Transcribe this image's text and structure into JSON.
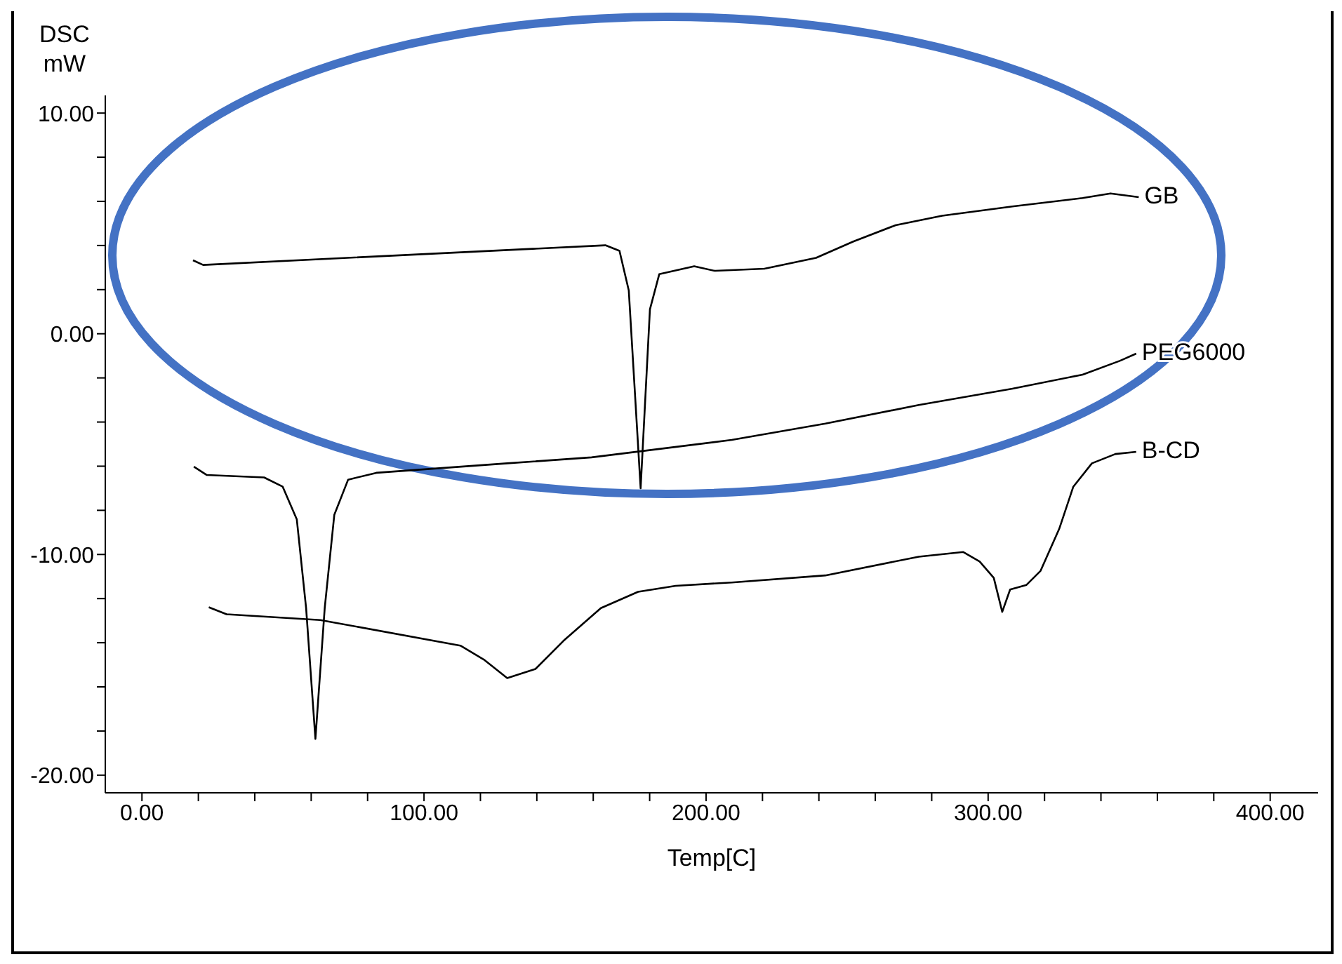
{
  "chart_data": {
    "type": "line",
    "ylabel": "DSC\nmW",
    "xlabel": "Temp[C]",
    "xlim": [
      -13,
      417
    ],
    "ylim": [
      -20.8,
      10.8
    ],
    "xticks": [
      {
        "value": 0,
        "label": "0.00"
      },
      {
        "value": 20,
        "label": null
      },
      {
        "value": 40,
        "label": null
      },
      {
        "value": 60,
        "label": null
      },
      {
        "value": 80,
        "label": null
      },
      {
        "value": 100,
        "label": "100.00"
      },
      {
        "value": 120,
        "label": null
      },
      {
        "value": 140,
        "label": null
      },
      {
        "value": 160,
        "label": null
      },
      {
        "value": 180,
        "label": null
      },
      {
        "value": 200,
        "label": "200.00"
      },
      {
        "value": 220,
        "label": null
      },
      {
        "value": 240,
        "label": null
      },
      {
        "value": 260,
        "label": null
      },
      {
        "value": 280,
        "label": null
      },
      {
        "value": 300,
        "label": "300.00"
      },
      {
        "value": 320,
        "label": null
      },
      {
        "value": 340,
        "label": null
      },
      {
        "value": 360,
        "label": null
      },
      {
        "value": 380,
        "label": null
      },
      {
        "value": 400,
        "label": "400.00"
      }
    ],
    "yticks": [
      {
        "value": -20,
        "label": "-20.00"
      },
      {
        "value": -18,
        "label": null
      },
      {
        "value": -16,
        "label": null
      },
      {
        "value": -14,
        "label": null
      },
      {
        "value": -12,
        "label": null
      },
      {
        "value": -10,
        "label": "-10.00"
      },
      {
        "value": -8,
        "label": null
      },
      {
        "value": -6,
        "label": null
      },
      {
        "value": -4,
        "label": null
      },
      {
        "value": -2,
        "label": null
      },
      {
        "value": 0,
        "label": "0.00"
      },
      {
        "value": 2,
        "label": null
      },
      {
        "value": 4,
        "label": null
      },
      {
        "value": 6,
        "label": null
      },
      {
        "value": 8,
        "label": null
      },
      {
        "value": 10,
        "label": "10.00"
      }
    ],
    "grid": false,
    "legend": false,
    "marker": "none",
    "line_style": "solid",
    "series": [
      {
        "name": "GB",
        "color": "#000000",
        "x": [
          18.1,
          21.7,
          164.3,
          169.3,
          172.6,
          176.8,
          180.1,
          183.4,
          195.8,
          203.1,
          220.7,
          239,
          252.2,
          267.2,
          283.7,
          308.6,
          333.5,
          343.4,
          353.4
        ],
        "values": [
          3.33,
          3.12,
          4.01,
          3.76,
          1.96,
          -7.0,
          1.11,
          2.7,
          3.06,
          2.85,
          2.95,
          3.44,
          4.18,
          4.92,
          5.35,
          5.77,
          6.15,
          6.36,
          6.19
        ]
      },
      {
        "name": "PEG6000",
        "color": "#000000",
        "x": [
          18.4,
          23,
          43.3,
          49.9,
          54.9,
          58.2,
          61.5,
          64.8,
          68.2,
          73.1,
          83.1,
          129.5,
          159.4,
          209.1,
          242.3,
          275.4,
          308.6,
          333.5,
          346.8,
          352.5
        ],
        "values": [
          -6.02,
          -6.4,
          -6.51,
          -6.93,
          -8.41,
          -12.43,
          -18.36,
          -12.43,
          -8.2,
          -6.61,
          -6.3,
          -5.87,
          -5.6,
          -4.81,
          -4.07,
          -3.23,
          -2.49,
          -1.85,
          -1.22,
          -0.9
        ]
      },
      {
        "name": "B-CD",
        "color": "#000000",
        "x": [
          23.7,
          30,
          63.2,
          112.9,
          121.2,
          129.5,
          139.5,
          149.4,
          162.7,
          175.9,
          189.2,
          209.1,
          242.3,
          275.4,
          291.2,
          297,
          302,
          305,
          307.8,
          313.6,
          318.6,
          325.2,
          330.2,
          336.8,
          345.1,
          352.5
        ],
        "values": [
          -12.39,
          -12.71,
          -12.97,
          -14.13,
          -14.76,
          -15.6,
          -15.19,
          -13.92,
          -12.43,
          -11.69,
          -11.42,
          -11.27,
          -10.95,
          -10.1,
          -9.89,
          -10.32,
          -11.06,
          -12.6,
          -11.59,
          -11.38,
          -10.74,
          -8.84,
          -6.93,
          -5.87,
          -5.45,
          -5.35
        ]
      }
    ]
  }
}
